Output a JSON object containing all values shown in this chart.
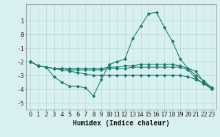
{
  "x": [
    0,
    1,
    2,
    3,
    4,
    5,
    6,
    7,
    8,
    9,
    10,
    11,
    12,
    13,
    14,
    15,
    16,
    17,
    18,
    19,
    20,
    21,
    22,
    23
  ],
  "line1": [
    -2.0,
    -2.3,
    -2.4,
    -3.1,
    -3.5,
    -3.8,
    -3.8,
    -3.9,
    -4.5,
    -3.3,
    -2.2,
    -2.0,
    -1.8,
    -0.3,
    0.6,
    1.5,
    1.6,
    0.5,
    -0.5,
    -1.8,
    -2.5,
    -2.7,
    -3.5,
    -3.9
  ],
  "line2": [
    -2.0,
    -2.3,
    -2.4,
    -2.5,
    -2.5,
    -2.5,
    -2.5,
    -2.5,
    -2.5,
    -2.5,
    -2.4,
    -2.4,
    -2.3,
    -2.3,
    -2.2,
    -2.2,
    -2.2,
    -2.2,
    -2.2,
    -2.3,
    -2.5,
    -3.0,
    -3.4,
    -3.9
  ],
  "line3": [
    -2.0,
    -2.3,
    -2.4,
    -2.5,
    -2.5,
    -2.6,
    -2.6,
    -2.6,
    -2.6,
    -2.6,
    -2.5,
    -2.5,
    -2.5,
    -2.4,
    -2.4,
    -2.4,
    -2.4,
    -2.4,
    -2.4,
    -2.4,
    -2.6,
    -3.2,
    -3.6,
    -4.0
  ],
  "line4": [
    -2.0,
    -2.3,
    -2.4,
    -2.5,
    -2.6,
    -2.7,
    -2.8,
    -2.9,
    -3.0,
    -3.0,
    -3.0,
    -3.0,
    -3.0,
    -3.0,
    -3.0,
    -3.0,
    -3.0,
    -3.0,
    -3.0,
    -3.0,
    -3.1,
    -3.3,
    -3.6,
    -3.9
  ],
  "line_color": "#1a7a6e",
  "bg_color": "#d8f0ef",
  "grid_color": "#b8d8d5",
  "xlabel": "Humidex (Indice chaleur)",
  "ylim": [
    -5.5,
    2.2
  ],
  "xlim": [
    -0.5,
    23.5
  ],
  "yticks": [
    1,
    0,
    -1,
    -2,
    -3,
    -4,
    -5
  ],
  "xticks": [
    0,
    1,
    2,
    3,
    4,
    5,
    6,
    7,
    8,
    9,
    10,
    11,
    12,
    13,
    14,
    15,
    16,
    17,
    18,
    19,
    20,
    21,
    22,
    23
  ],
  "xlabel_fontsize": 7,
  "tick_fontsize": 6.5
}
